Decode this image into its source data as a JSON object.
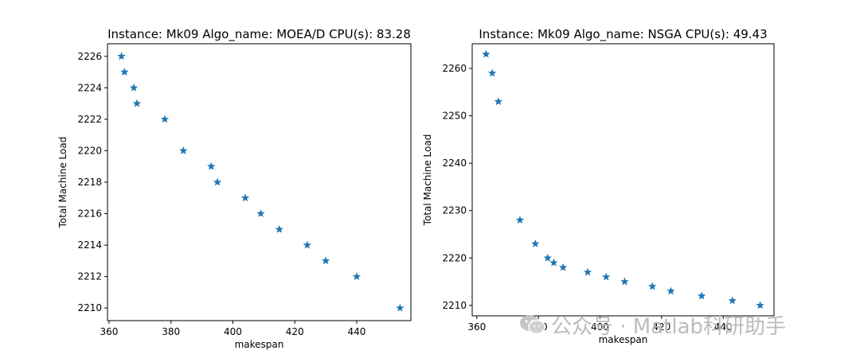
{
  "chart_data": [
    {
      "type": "scatter",
      "title": "Instance: Mk09 Algo_name: MOEA/D CPU(s): 83.28",
      "xlabel": "makespan",
      "ylabel": "Total Machine Load",
      "xlim": [
        359.5,
        457.5
      ],
      "ylim": [
        2209.2,
        2226.8
      ],
      "xticks": [
        360,
        380,
        400,
        420,
        440
      ],
      "yticks": [
        2210,
        2212,
        2214,
        2216,
        2218,
        2220,
        2222,
        2224,
        2226
      ],
      "marker": "star",
      "color": "#1f77b4",
      "grid": false,
      "points": [
        {
          "x": 364,
          "y": 2226
        },
        {
          "x": 365,
          "y": 2225
        },
        {
          "x": 368,
          "y": 2224
        },
        {
          "x": 369,
          "y": 2223
        },
        {
          "x": 378,
          "y": 2222
        },
        {
          "x": 384,
          "y": 2220
        },
        {
          "x": 393,
          "y": 2219
        },
        {
          "x": 395,
          "y": 2218
        },
        {
          "x": 404,
          "y": 2217
        },
        {
          "x": 409,
          "y": 2216
        },
        {
          "x": 415,
          "y": 2215
        },
        {
          "x": 424,
          "y": 2214
        },
        {
          "x": 430,
          "y": 2213
        },
        {
          "x": 440,
          "y": 2212
        },
        {
          "x": 454,
          "y": 2210
        }
      ]
    },
    {
      "type": "scatter",
      "title": "Instance: Mk09 Algo_name: NSGA CPU(s): 49.43",
      "xlabel": "makespan",
      "ylabel": "Total Machine Load",
      "xlim": [
        358.5,
        456.5
      ],
      "ylim": [
        2207.8,
        2265.2
      ],
      "xticks": [
        360,
        380,
        400,
        420,
        440
      ],
      "yticks": [
        2210,
        2220,
        2230,
        2240,
        2250,
        2260
      ],
      "marker": "star",
      "color": "#1f77b4",
      "grid": false,
      "points": [
        {
          "x": 363,
          "y": 2263
        },
        {
          "x": 365,
          "y": 2259
        },
        {
          "x": 367,
          "y": 2253
        },
        {
          "x": 374,
          "y": 2228
        },
        {
          "x": 379,
          "y": 2223
        },
        {
          "x": 383,
          "y": 2220
        },
        {
          "x": 385,
          "y": 2219
        },
        {
          "x": 388,
          "y": 2218
        },
        {
          "x": 396,
          "y": 2217
        },
        {
          "x": 402,
          "y": 2216
        },
        {
          "x": 408,
          "y": 2215
        },
        {
          "x": 417,
          "y": 2214
        },
        {
          "x": 423,
          "y": 2213
        },
        {
          "x": 433,
          "y": 2212
        },
        {
          "x": 443,
          "y": 2211
        },
        {
          "x": 452,
          "y": 2210
        }
      ]
    }
  ],
  "watermark": {
    "text": "公众号 · Matlab科研助手",
    "icon": "wechat-icon"
  }
}
